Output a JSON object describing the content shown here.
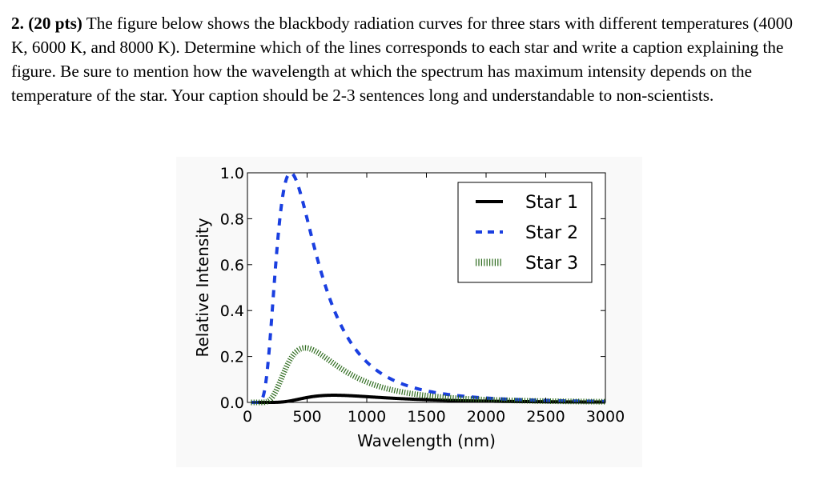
{
  "question": {
    "number": "2. (20 pts)",
    "text": "The figure below shows the blackbody radiation curves for three stars with different temperatures (4000 K, 6000 K, and 8000 K). Determine which of the lines corresponds to each star and write a caption explaining the figure. Be sure to mention how the wavelength at which the spectrum has maximum intensity depends on the temperature of the star. Your caption should be 2-3 sentences long and understandable to non-scientists."
  },
  "chart_data": {
    "type": "line",
    "title": "",
    "xlabel": "Wavelength (nm)",
    "ylabel": "Relative Intensity",
    "xlim": [
      0,
      3000
    ],
    "ylim": [
      0,
      1.0
    ],
    "xticks": [
      "0",
      "500",
      "1000",
      "1500",
      "2000",
      "2500",
      "3000"
    ],
    "yticks": [
      "0.0",
      "0.2",
      "0.4",
      "0.6",
      "0.8",
      "1.0"
    ],
    "grid": false,
    "legend_position": "top-right",
    "series": [
      {
        "name": "Star 1",
        "style": "solid",
        "color": "#000000",
        "temperature_k": 4000
      },
      {
        "name": "Star 2",
        "style": "dashed",
        "color": "#1a3fe0",
        "temperature_k": 8000
      },
      {
        "name": "Star 3",
        "style": "dotted",
        "color": "#2e6b1e",
        "temperature_k": 6000
      }
    ]
  }
}
